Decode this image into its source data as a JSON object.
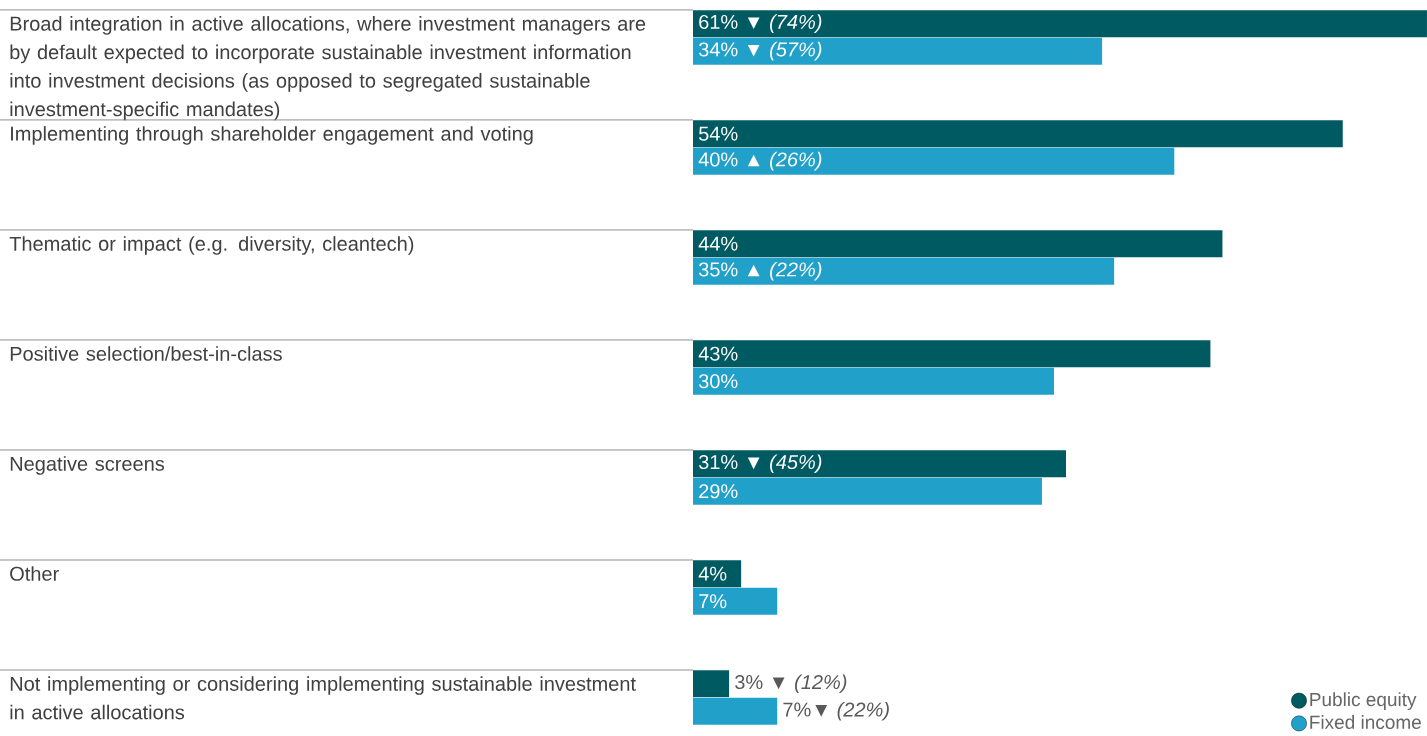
{
  "chart_data": {
    "type": "bar",
    "orientation": "horizontal",
    "legend": "bottom right",
    "categories": [
      "Broad integration in active allocations, where investment managers are by default expected to incorporate sustainable investment information into investment decisions (as opposed to segregated sustainable investment-specific mandates)",
      "Implementing through shareholder engagement and voting",
      "Thematic or impact (e.g. diversity, cleantech)",
      "Positive selection/best-in-class",
      "Negative screens",
      "Other",
      "Not implementing or considering implementing sustainable investment in active allocations"
    ],
    "series": [
      {
        "name": "Public equity",
        "color": "#005a62",
        "values": [
          61,
          54,
          44,
          43,
          31,
          4,
          3
        ],
        "value_labels": [
          "61% ▼ *(74%)*",
          "54%",
          "44%",
          "43%",
          "31% ▼ *(45%)*",
          "4%",
          "3% ▼ *(12%)*"
        ]
      },
      {
        "name": "Fixed income",
        "color": "#21a0c9",
        "values": [
          34,
          40,
          35,
          30,
          29,
          7,
          7
        ],
        "value_labels": [
          "34% ▼ *(57%)*",
          "40% ▲ *(26%)*",
          "35% ▲ *(22%)*",
          "30%",
          "29%",
          "7%",
          "7%▼ *(22%)*"
        ]
      }
    ]
  }
}
